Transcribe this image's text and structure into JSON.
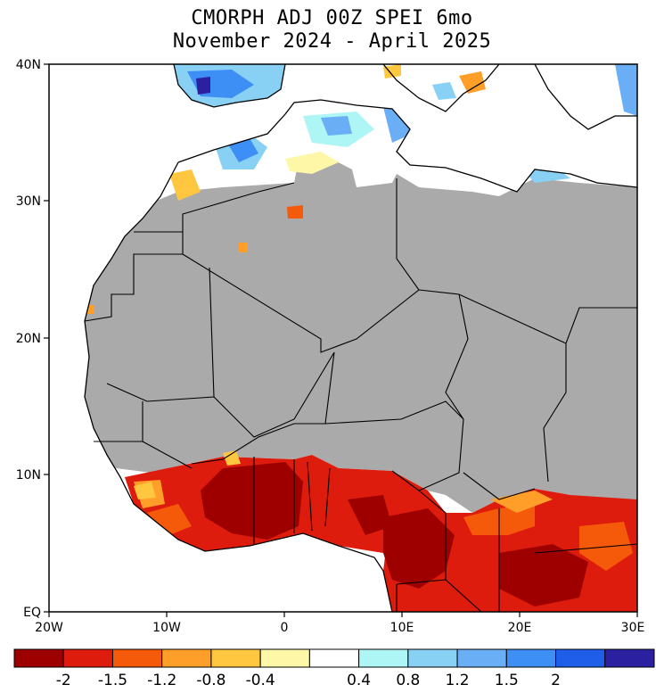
{
  "title": {
    "line1": "CMORPH ADJ 00Z SPEI 6mo",
    "line2": "November 2024 - April 2025"
  },
  "axes": {
    "lat_labels": [
      "40N",
      "30N",
      "20N",
      "10N",
      "EQ"
    ],
    "lon_labels": [
      "20W",
      "10W",
      "0",
      "10E",
      "20E",
      "30E"
    ]
  },
  "colorbar": {
    "colors": [
      "#9e0000",
      "#dd1c0e",
      "#f55a0a",
      "#ff9f2a",
      "#ffc640",
      "#fff7a8",
      "#ffffff",
      "#aef5f5",
      "#89d0f5",
      "#6aaef5",
      "#3d8ef5",
      "#1f5ee8",
      "#2a20a0"
    ],
    "tick_labels": [
      "-2",
      "-1.5",
      "-1.2",
      "-0.8",
      "-0.4",
      "0.4",
      "0.8",
      "1.2",
      "1.5",
      "2"
    ]
  },
  "legend_colors": {
    "no_data": "#aaaaaa",
    "ocean": "#ffffff",
    "border": "#000000"
  }
}
